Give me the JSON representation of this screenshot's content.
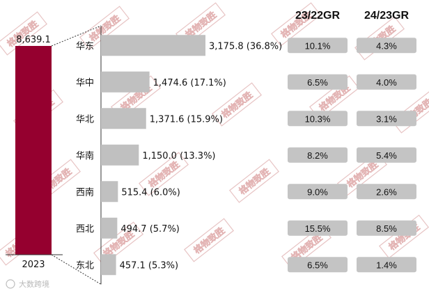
{
  "chart_data": {
    "type": "bar",
    "total": {
      "category": "2023",
      "value": 8639.1,
      "label": "8,639.1",
      "color": "#95002f"
    },
    "categories": [
      "华东",
      "华中",
      "华北",
      "华南",
      "西南",
      "西北",
      "东北"
    ],
    "values": [
      3175.8,
      1474.6,
      1371.6,
      1150.0,
      515.4,
      494.7,
      457.1
    ],
    "value_labels": [
      "3,175.8 (36.8%)",
      "1,474.6 (17.1%)",
      "1,371.6 (15.9%)",
      "1,150.0 (13.3%)",
      "515.4 (6.0%)",
      "494.7 (5.7%)",
      "457.1 (5.3%)"
    ],
    "bar_color": "#c0c0c0",
    "growth_headers": [
      "23/22GR",
      "24/23GR"
    ],
    "growth": [
      [
        "10.1%",
        "4.3%"
      ],
      [
        "6.5%",
        "4.0%"
      ],
      [
        "10.3%",
        "3.1%"
      ],
      [
        "8.2%",
        "5.4%"
      ],
      [
        "9.0%",
        "2.6%"
      ],
      [
        "15.5%",
        "8.5%"
      ],
      [
        "6.5%",
        "1.4%"
      ]
    ],
    "growth_box_color": "#c4c4c4"
  },
  "watermark": {
    "text": "格物致胜"
  },
  "source_logo": {
    "text": "大数跨境"
  }
}
